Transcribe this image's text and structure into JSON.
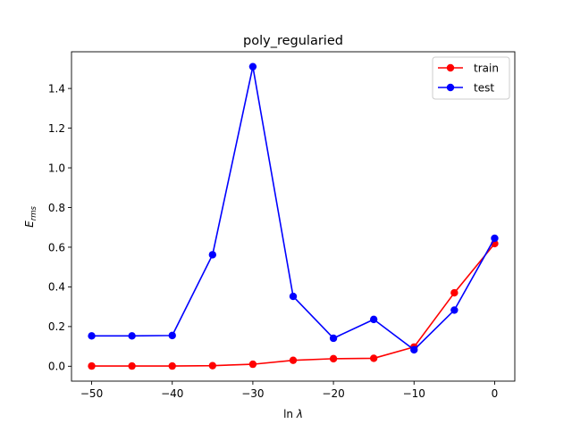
{
  "chart_data": {
    "type": "line",
    "title": "poly_regularied",
    "xlabel": "ln λ",
    "ylabel": "E_rms",
    "ylabel_main": "E",
    "ylabel_sub": "rms",
    "xlabel_main": "ln ",
    "xlabel_sym": "λ",
    "xlim": [
      -52.5,
      2.5
    ],
    "ylim": [
      -0.075,
      1.585
    ],
    "xticks": [
      -50,
      -40,
      -30,
      -20,
      -10,
      0
    ],
    "xtick_labels": [
      "−50",
      "−40",
      "−30",
      "−20",
      "−10",
      "0"
    ],
    "yticks": [
      0.0,
      0.2,
      0.4,
      0.6,
      0.8,
      1.0,
      1.2,
      1.4
    ],
    "ytick_labels": [
      "0.0",
      "0.2",
      "0.4",
      "0.6",
      "0.8",
      "1.0",
      "1.2",
      "1.4"
    ],
    "grid": false,
    "legend_position": "top-right",
    "x": [
      -50,
      -45,
      -40,
      -35,
      -30,
      -25,
      -20,
      -15,
      -10,
      -5,
      0
    ],
    "series": [
      {
        "name": "train",
        "color": "#ff0000",
        "marker": "circle",
        "values": [
          0.001,
          0.001,
          0.001,
          0.003,
          0.01,
          0.03,
          0.038,
          0.04,
          0.097,
          0.37,
          0.618
        ]
      },
      {
        "name": "test",
        "color": "#0000ff",
        "marker": "circle",
        "values": [
          0.153,
          0.153,
          0.155,
          0.562,
          1.51,
          0.352,
          0.141,
          0.236,
          0.083,
          0.283,
          0.645
        ]
      }
    ]
  }
}
